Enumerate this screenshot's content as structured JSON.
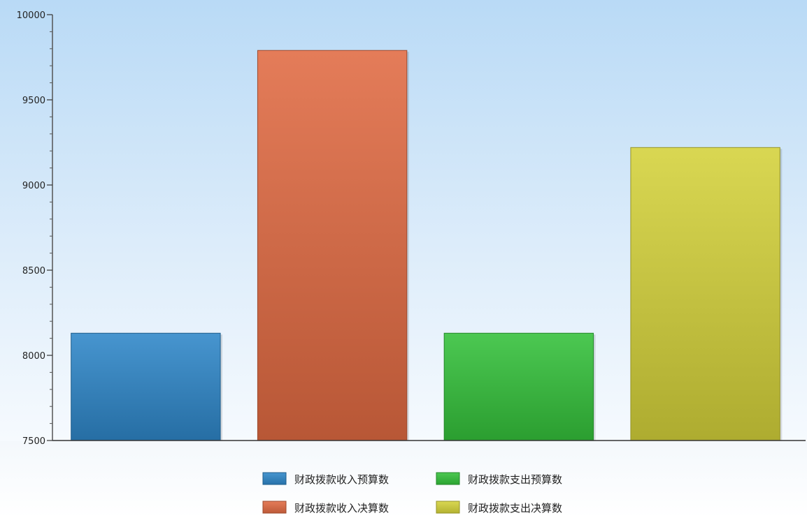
{
  "chart_data": {
    "type": "bar",
    "categories": [
      "财政拨款收入预算数",
      "财政拨款收入决算数",
      "财政拨款支出预算数",
      "财政拨款支出决算数"
    ],
    "values": [
      8130,
      9790,
      8130,
      9220
    ],
    "colors": [
      "#2e86c8",
      "#e06a42",
      "#34c13a",
      "#d4d23a"
    ],
    "ylim": [
      7500,
      10000
    ],
    "yticks": [
      7500,
      8000,
      8500,
      9000,
      9500,
      10000
    ],
    "ytick_labels": [
      "7500",
      "8000",
      "8500",
      "9000",
      "9500",
      "10000"
    ],
    "title": "",
    "xlabel": "",
    "ylabel": "",
    "grid": false,
    "legend": {
      "placement": "bottom",
      "entries": [
        "财政拨款收入预算数",
        "财政拨款支出预算数",
        "财政拨款收入决算数",
        "财政拨款支出决算数"
      ]
    }
  }
}
